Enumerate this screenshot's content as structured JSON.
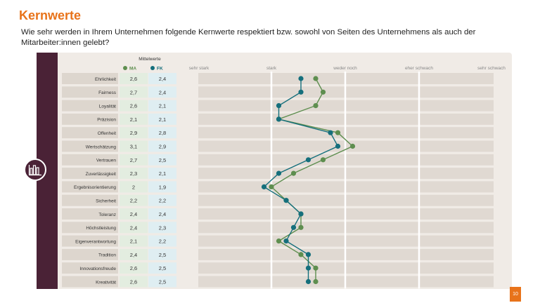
{
  "page": {
    "title": "Kernwerte",
    "subtitle": "Wie sehr werden in Ihrem Unternehmen folgende Kernwerte respektiert bzw. sowohl von Seiten des Unternehmens als auch der Mitarbeiter:innen gelebt?",
    "page_number": "10"
  },
  "icons": {
    "sidebar_icon": "bar-chart-icon"
  },
  "colors": {
    "accent": "#E8731A",
    "sidebar": "#4A2236",
    "ma": "#5E8E4F",
    "fk": "#156F7C"
  },
  "chart_data": {
    "type": "line",
    "mittelwerte_label": "Mittelwerte",
    "scale_labels": [
      "sehr stark",
      "stark",
      "weder noch",
      "eher schwach",
      "sehr schwach"
    ],
    "xlim": [
      1,
      5
    ],
    "categories": [
      "Ehrlichkeit",
      "Fairness",
      "Loyalität",
      "Präzision",
      "Offenheit",
      "Wertschätzung",
      "Vertrauen",
      "Zuverlässigkeit",
      "Ergebnisorientierung",
      "Sicherheit",
      "Toleranz",
      "Höchstleistung",
      "Eigenverantwortung",
      "Tradition",
      "Innovationsfreude",
      "Kreativität"
    ],
    "series": [
      {
        "name": "MA",
        "color": "#5E8E4F",
        "values": [
          2.6,
          2.7,
          2.6,
          2.1,
          2.9,
          3.1,
          2.7,
          2.3,
          2,
          2.2,
          2.4,
          2.4,
          2.1,
          2.4,
          2.6,
          2.6
        ]
      },
      {
        "name": "FK",
        "color": "#156F7C",
        "values": [
          2.4,
          2.4,
          2.1,
          2.1,
          2.8,
          2.9,
          2.5,
          2.1,
          1.9,
          2.2,
          2.4,
          2.3,
          2.2,
          2.5,
          2.5,
          2.5
        ]
      }
    ]
  }
}
